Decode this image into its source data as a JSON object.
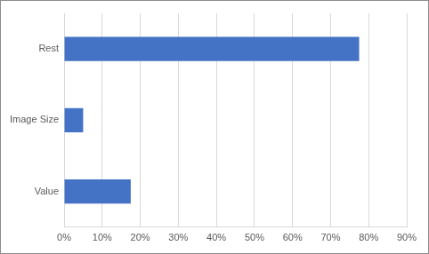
{
  "chart_data": {
    "type": "bar",
    "orientation": "horizontal",
    "categories": [
      "Rest",
      "Image Size",
      "Value"
    ],
    "values": [
      77.5,
      5,
      17.5
    ],
    "color": "#4472c4",
    "xlim": [
      0,
      90
    ],
    "xticks": [
      {
        "value": 0,
        "label": "0%"
      },
      {
        "value": 10,
        "label": "10%"
      },
      {
        "value": 20,
        "label": "20%"
      },
      {
        "value": 30,
        "label": "30%"
      },
      {
        "value": 40,
        "label": "40%"
      },
      {
        "value": 50,
        "label": "50%"
      },
      {
        "value": 60,
        "label": "60%"
      },
      {
        "value": 70,
        "label": "70%"
      },
      {
        "value": 80,
        "label": "80%"
      },
      {
        "value": 90,
        "label": "90%"
      }
    ],
    "grid": true
  }
}
